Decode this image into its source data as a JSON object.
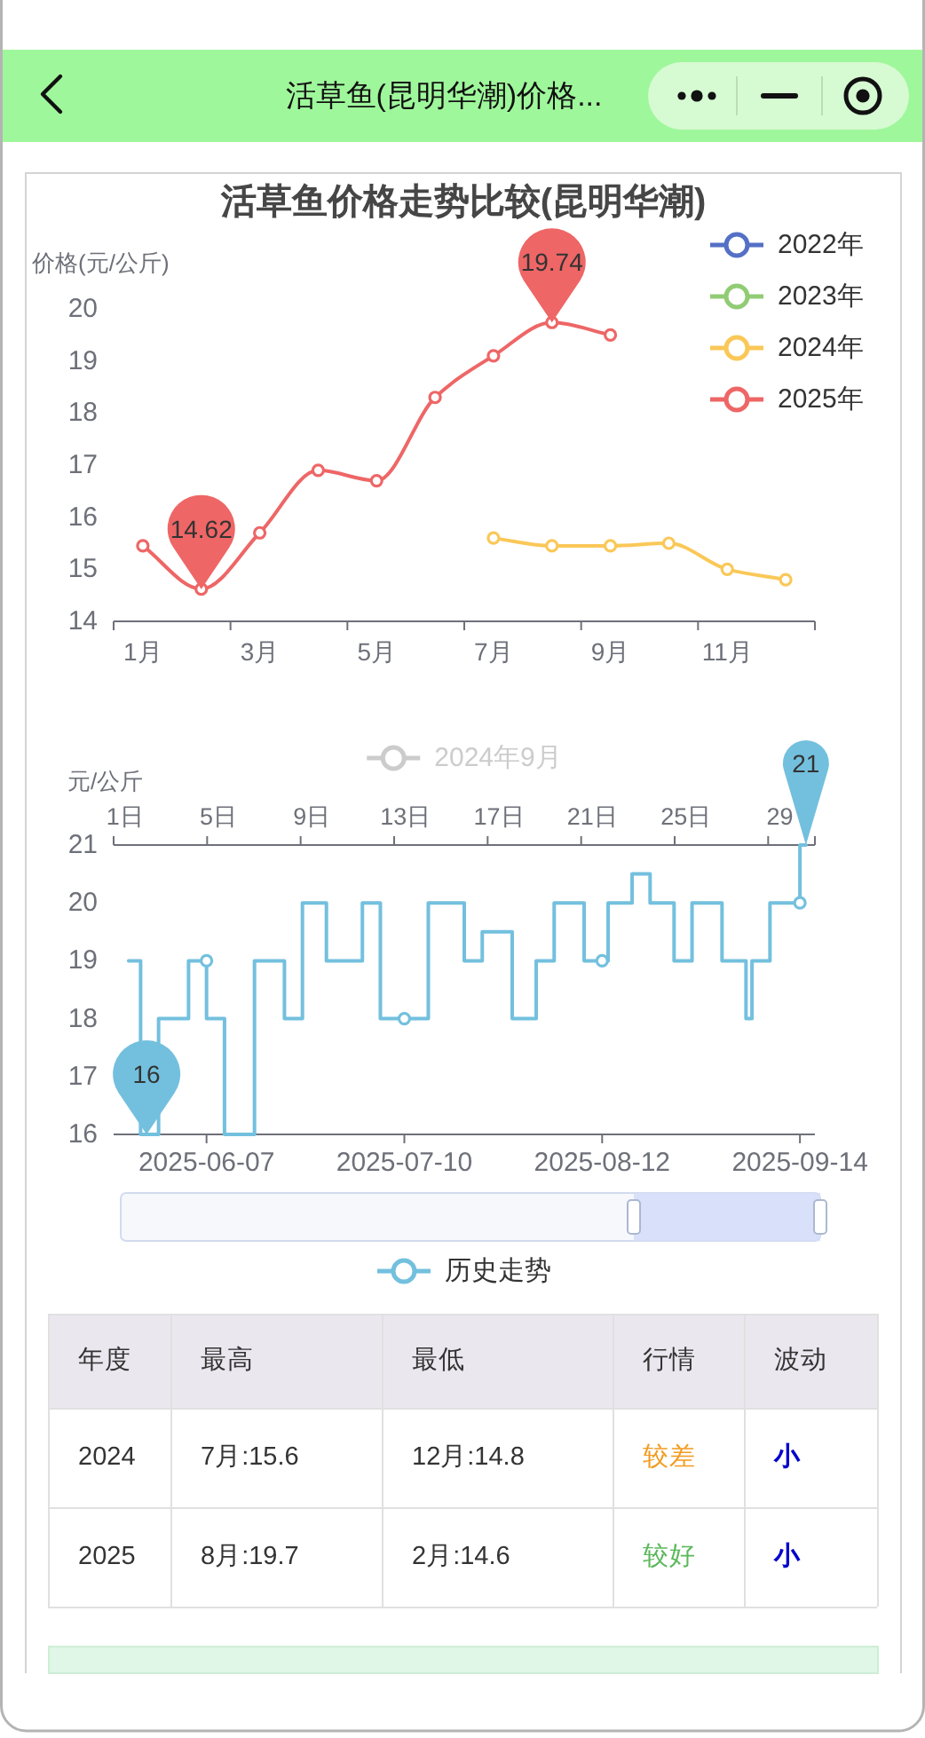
{
  "chart_data": [
    {
      "type": "other",
      "title": "活草鱼(昆明华潮)价格..."
    },
    {
      "type": "line",
      "title": "活草鱼价格走势比较(昆明华潮)",
      "ylabel": "价格(元/公斤)",
      "categories": [
        "1月",
        null,
        "3月",
        null,
        "5月",
        null,
        "7月",
        null,
        "9月",
        null,
        "11月",
        null
      ],
      "ylim": [
        14,
        20
      ],
      "yticks": [
        14,
        15,
        16,
        17,
        18,
        19,
        20
      ],
      "legend": "top right",
      "marker": "circle",
      "line_style": "solid",
      "series": [
        {
          "name": "2022年",
          "color": "#5470c6",
          "values": [
            null,
            null,
            null,
            null,
            null,
            null,
            null,
            null,
            null,
            null,
            null,
            null
          ]
        },
        {
          "name": "2023年",
          "color": "#91cc75",
          "values": [
            null,
            null,
            null,
            null,
            null,
            null,
            null,
            null,
            null,
            null,
            null,
            null
          ]
        },
        {
          "name": "2024年",
          "color": "#fac858",
          "values": [
            null,
            null,
            null,
            null,
            null,
            null,
            15.6,
            15.45,
            15.45,
            15.5,
            15.0,
            14.8
          ]
        },
        {
          "name": "2025年",
          "color": "#ee6666",
          "values": [
            15.45,
            14.62,
            15.7,
            16.9,
            16.7,
            18.3,
            19.1,
            19.74,
            19.5,
            null,
            null,
            null
          ],
          "value_labels": [
            null,
            "14.62",
            null,
            null,
            null,
            null,
            null,
            "19.74",
            null,
            null,
            null,
            null
          ]
        }
      ]
    },
    {
      "type": "step",
      "ylabel": "元/公斤",
      "x2label": "2024年9月",
      "xlim": [
        "2025-05-22T12:00",
        "2025-09-16T12:00"
      ],
      "xticks": [
        "2025-06-07",
        "2025-07-10",
        "2025-08-12",
        "2025-09-14"
      ],
      "ylim": [
        16,
        21
      ],
      "yticks": [
        16,
        17,
        18,
        19,
        20,
        21
      ],
      "x2lim": [
        0.5,
        30.5
      ],
      "x2ticks": [
        {
          "value": 0.5,
          "label": null
        },
        {
          "value": 1,
          "label": "1日"
        },
        {
          "value": 4.5,
          "label": null
        },
        {
          "value": 5,
          "label": "5日"
        },
        {
          "value": 8.5,
          "label": null
        },
        {
          "value": 9,
          "label": "9日"
        },
        {
          "value": 12.5,
          "label": null
        },
        {
          "value": 13,
          "label": "13日"
        },
        {
          "value": 16.5,
          "label": null
        },
        {
          "value": 17,
          "label": "17日"
        },
        {
          "value": 20.5,
          "label": null
        },
        {
          "value": 21,
          "label": "21日"
        },
        {
          "value": 24.5,
          "label": null
        },
        {
          "value": 25,
          "label": "25日"
        },
        {
          "value": 28.5,
          "label": null
        },
        {
          "value": 29,
          "label": "29"
        },
        {
          "value": 30.5,
          "label": null
        }
      ],
      "legend": "bottom",
      "series": [
        {
          "name": "历史走势",
          "color": "#73c0de",
          "x": [
            "2025-05-25",
            "2025-05-27",
            "2025-05-28",
            "2025-05-30",
            "2025-06-04",
            "2025-06-07",
            "2025-06-10",
            "2025-06-15",
            "2025-06-20",
            "2025-06-23",
            "2025-06-27",
            "2025-07-03",
            "2025-07-06",
            "2025-07-10",
            "2025-07-14",
            "2025-07-20",
            "2025-07-23",
            "2025-07-28",
            "2025-08-01",
            "2025-08-04",
            "2025-08-09",
            "2025-08-12",
            "2025-08-13",
            "2025-08-17",
            "2025-08-20",
            "2025-08-24",
            "2025-08-27",
            "2025-09-01",
            "2025-09-05",
            "2025-09-06",
            "2025-09-09",
            "2025-09-14",
            "2025-09-15"
          ],
          "values": [
            19,
            19,
            16,
            16,
            18,
            19,
            18,
            16,
            19,
            18,
            20,
            19,
            20,
            18,
            18,
            20,
            19,
            19.5,
            18,
            19,
            20,
            19,
            19,
            20,
            20.5,
            20,
            19,
            20,
            19,
            18,
            19,
            20,
            21
          ],
          "value_labels": [
            null,
            null,
            "16",
            null,
            null,
            null,
            null,
            null,
            null,
            null,
            null,
            null,
            null,
            null,
            null,
            null,
            null,
            null,
            null,
            null,
            null,
            null,
            null,
            null,
            null,
            null,
            null,
            null,
            null,
            null,
            null,
            null,
            "21"
          ]
        },
        {
          "type": "scatter",
          "color": "#73c0de",
          "marker": "circle",
          "x": [
            "2025-06-07",
            "2025-07-10",
            "2025-08-12",
            "2025-09-14"
          ],
          "values": [
            19,
            18,
            19,
            20
          ]
        }
      ]
    },
    {
      "type": "other",
      "categories": [
        "年度",
        "最高",
        "最低",
        "行情",
        "波动"
      ],
      "annotations": [
        "2024",
        "7月:15.6",
        "12月:14.8",
        "较差",
        "小",
        "2025",
        "8月:19.7",
        "2月:14.6",
        "较好",
        "小"
      ]
    }
  ]
}
